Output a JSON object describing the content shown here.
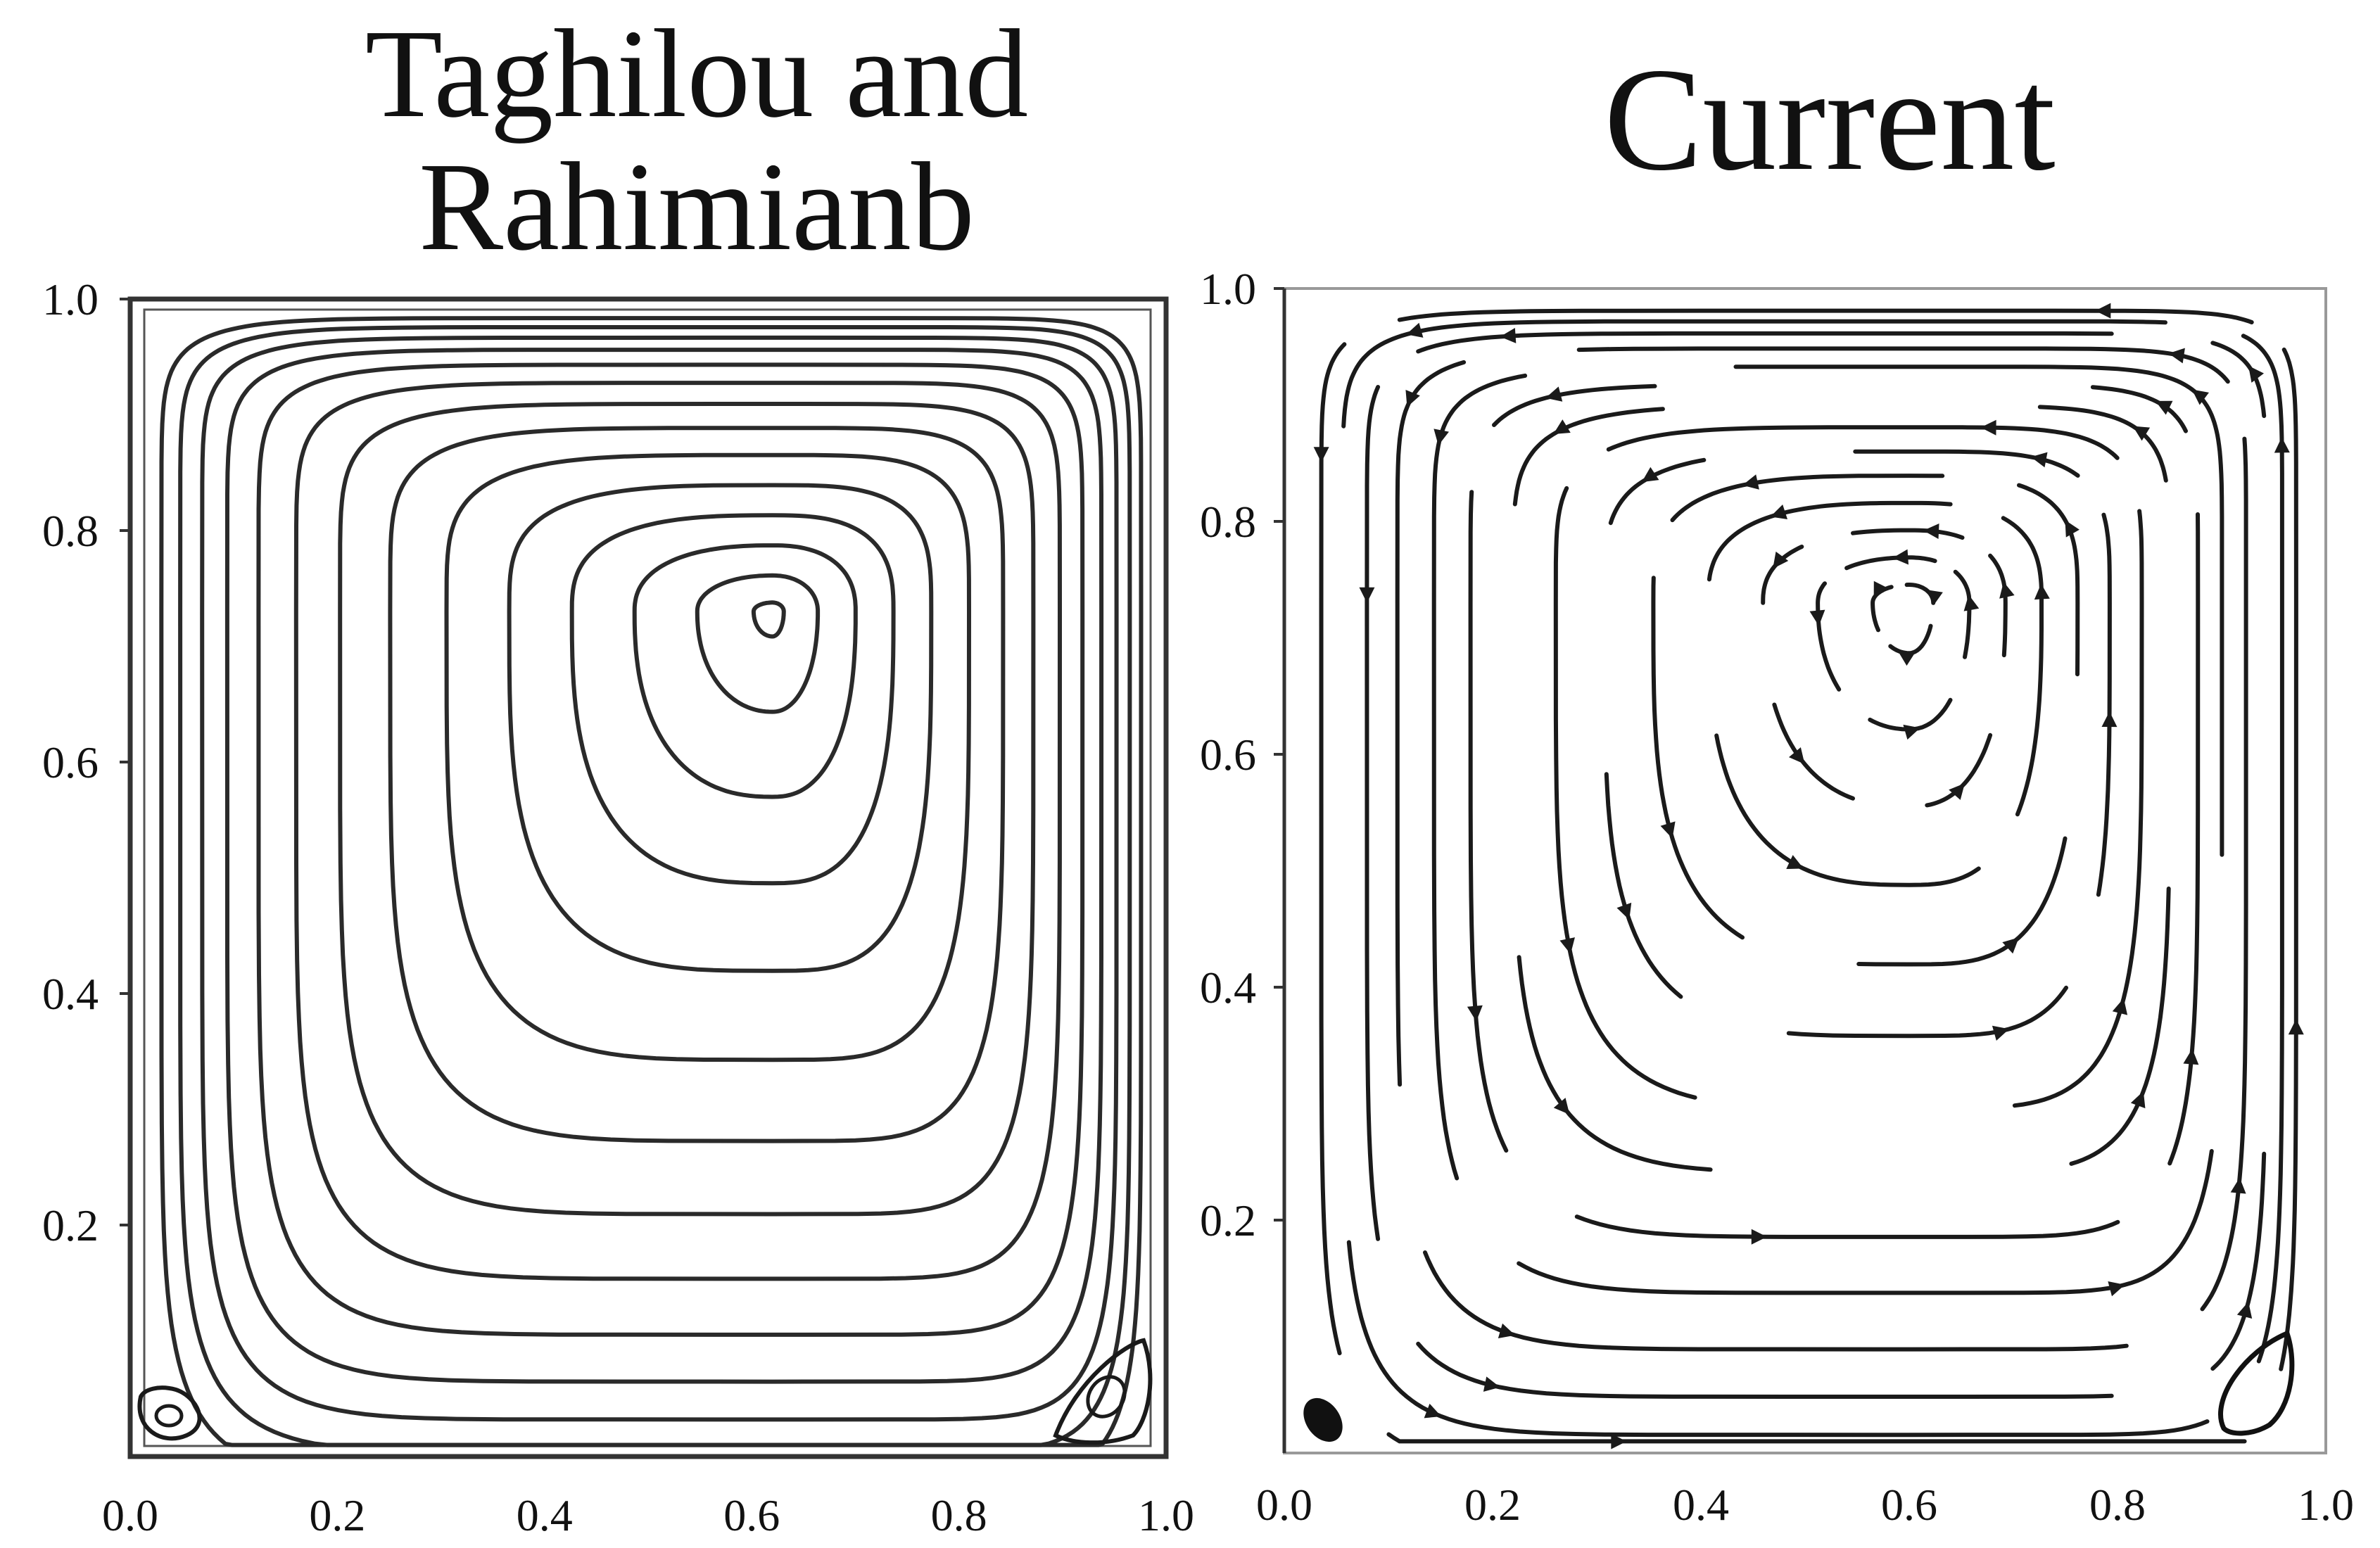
{
  "panels": [
    {
      "title_line1": "Taghilou and",
      "title_line2": "Rahimianb",
      "x_ticks": [
        "0.0",
        "0.2",
        "0.4",
        "0.6",
        "0.8",
        "1.0"
      ],
      "y_ticks": [
        "0.2",
        "0.4",
        "0.6",
        "0.8",
        "1.0"
      ]
    },
    {
      "title": "Current",
      "x_ticks": [
        "0.0",
        "0.2",
        "0.4",
        "0.6",
        "0.8",
        "1.0"
      ],
      "y_ticks": [
        "0.2",
        "0.4",
        "0.6",
        "0.8",
        "1.0"
      ]
    }
  ],
  "colors": {
    "line": "#1a1a1a",
    "axis": "#333333",
    "frame_light": "#999999"
  }
}
